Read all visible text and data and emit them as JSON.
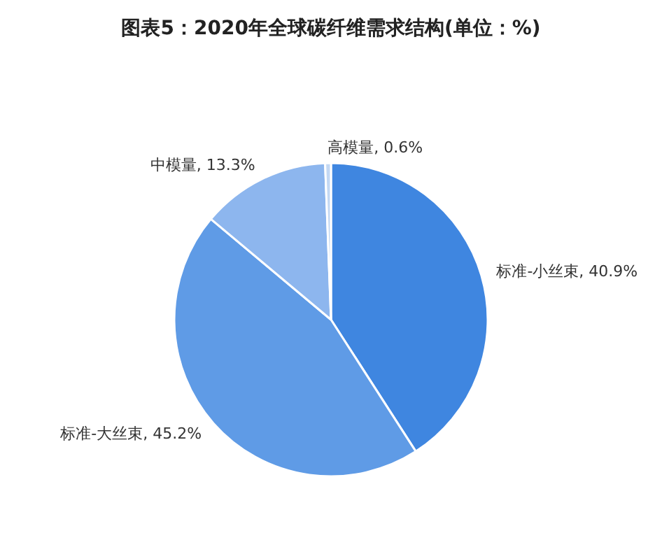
{
  "chart_data": {
    "type": "pie",
    "title": "图表5：2020年全球碳纤维需求结构(单位：%)",
    "categories": [
      "标准-小丝束",
      "标准-大丝束",
      "中模量",
      "高模量"
    ],
    "values": [
      40.9,
      45.2,
      13.3,
      0.6
    ],
    "colors": [
      "#3f86e0",
      "#5f9be6",
      "#8db6ee",
      "#c3d8f3"
    ],
    "value_labels": [
      "40.9%",
      "45.2%",
      "13.3%",
      "0.6%"
    ]
  }
}
